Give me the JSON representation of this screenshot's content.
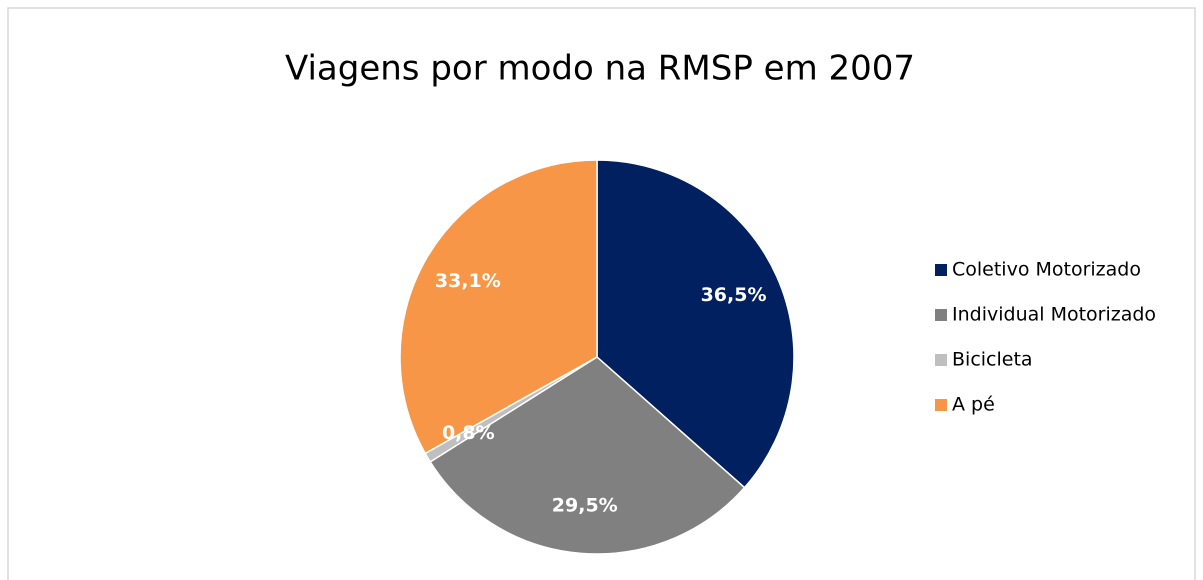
{
  "chart_data": {
    "type": "pie",
    "title": "Viagens por modo na RMSP em 2007",
    "categories": [
      "Coletivo Motorizado",
      "Individual Motorizado",
      "Bicicleta",
      "A pé"
    ],
    "values": [
      36.5,
      29.5,
      0.8,
      33.1
    ],
    "value_labels": [
      "36,5%",
      "29,5%",
      "0,8%",
      "33,1%"
    ],
    "colors": [
      "#002060",
      "#808080",
      "#bfbfbf",
      "#f79646"
    ],
    "legend": "right"
  }
}
